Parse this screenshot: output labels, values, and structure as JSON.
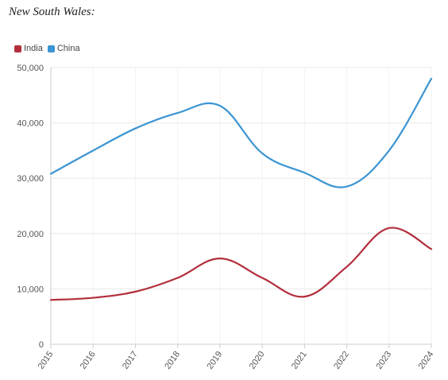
{
  "page": {
    "title": "New South Wales:"
  },
  "colors": {
    "India": "#b22e3b",
    "China": "#3b95d2",
    "grid": "#e8e8e8",
    "axis": "#cccccc"
  },
  "chart_data": {
    "type": "line",
    "title": "New South Wales:",
    "x": [
      "2015",
      "2016",
      "2017",
      "2018",
      "2019",
      "2020",
      "2021",
      "2022",
      "2023",
      "2024"
    ],
    "series": [
      {
        "name": "India",
        "color": "#b22e3b",
        "values": [
          8000,
          8400,
          9500,
          12000,
          15500,
          12000,
          8600,
          14000,
          21000,
          17200
        ]
      },
      {
        "name": "China",
        "color": "#3b95d2",
        "values": [
          30800,
          35000,
          39000,
          41800,
          43100,
          34500,
          31000,
          28500,
          35000,
          48000
        ]
      }
    ],
    "y_ticks": [
      "0",
      "10,000",
      "20,000",
      "30,000",
      "40,000",
      "50,000"
    ],
    "ylim": [
      0,
      50000
    ],
    "grid": true,
    "legend": "top-left"
  }
}
